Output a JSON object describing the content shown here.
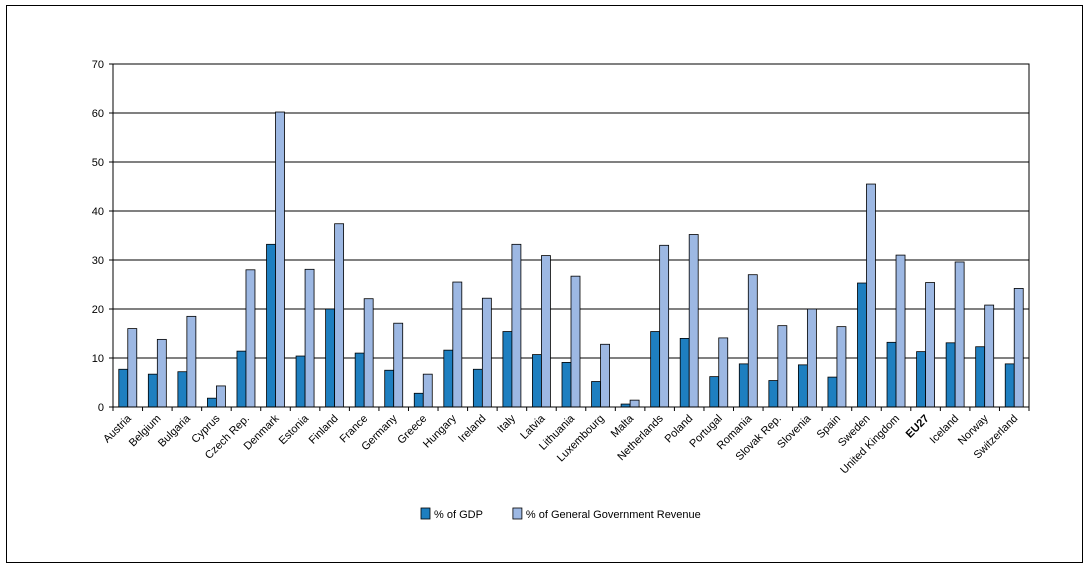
{
  "chart_data": {
    "type": "bar",
    "categories": [
      "Austria",
      "Belgium",
      "Bulgaria",
      "Cyprus",
      "Czech Rep.",
      "Denmark",
      "Estonia",
      "Finland",
      "France",
      "Germany",
      "Greece",
      "Hungary",
      "Ireland",
      "Italy",
      "Latvia",
      "Lithuania",
      "Luxembourg",
      "Malta",
      "Netherlands",
      "Poland",
      "Portugal",
      "Romania",
      "Slovak Rep.",
      "Slovenia",
      "Spain",
      "Sweden",
      "United Kingdom",
      "EU27",
      "Iceland",
      "Norway",
      "Switzerland"
    ],
    "bold_categories": [
      "EU27"
    ],
    "series": [
      {
        "name": "% of GDP",
        "color": "#1e7fc0",
        "values": [
          7.7,
          6.7,
          7.2,
          1.8,
          11.4,
          33.2,
          10.4,
          20.0,
          11.0,
          7.5,
          2.8,
          11.6,
          7.7,
          15.4,
          10.7,
          9.1,
          5.2,
          0.6,
          15.4,
          14.0,
          6.2,
          8.8,
          5.4,
          8.6,
          6.1,
          25.3,
          13.2,
          11.3,
          13.1,
          12.3,
          8.8
        ]
      },
      {
        "name": "% of General Government Revenue",
        "color": "#9db8e3",
        "values": [
          16.0,
          13.8,
          18.5,
          4.3,
          28.0,
          60.2,
          28.1,
          37.4,
          22.1,
          17.1,
          6.7,
          25.5,
          22.2,
          33.2,
          30.9,
          26.7,
          12.8,
          1.4,
          33.0,
          35.2,
          14.1,
          27.0,
          16.6,
          20.0,
          16.4,
          45.5,
          31.0,
          25.4,
          29.6,
          20.8,
          24.2
        ]
      }
    ],
    "ylim": [
      0,
      70
    ],
    "yticks": [
      0,
      10,
      20,
      30,
      40,
      50,
      60,
      70
    ],
    "grid": true,
    "legend_position": "bottom-center",
    "title": "",
    "xlabel": "",
    "ylabel": ""
  }
}
